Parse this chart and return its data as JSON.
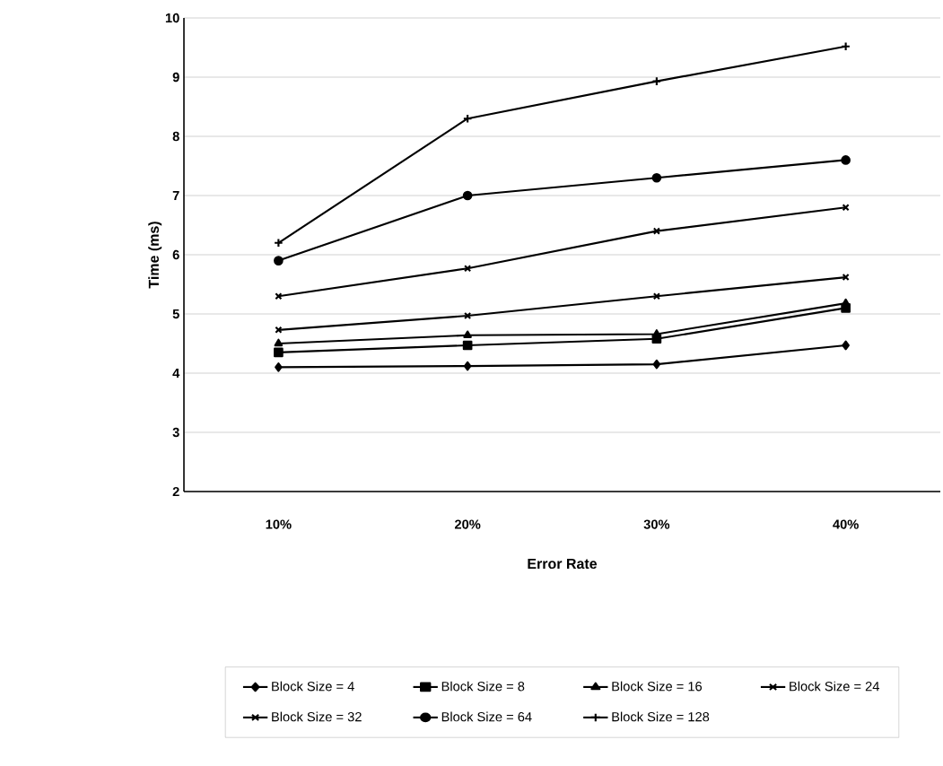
{
  "chart_data": {
    "type": "line",
    "xlabel": "Error Rate",
    "ylabel": "Time (ms)",
    "categories": [
      "10%",
      "20%",
      "30%",
      "40%"
    ],
    "series": [
      {
        "name": "Block Size = 4",
        "color": "#000000",
        "marker": "diamond",
        "values": [
          4.1,
          4.12,
          4.15,
          4.47
        ]
      },
      {
        "name": "Block Size = 8",
        "color": "#000000",
        "marker": "square",
        "values": [
          4.35,
          4.47,
          4.58,
          5.1
        ]
      },
      {
        "name": "Block Size = 16",
        "color": "#000000",
        "marker": "triangle",
        "values": [
          4.5,
          4.64,
          4.66,
          5.18
        ]
      },
      {
        "name": "Block Size = 24",
        "color": "#000000",
        "marker": "cross",
        "values": [
          4.73,
          4.97,
          5.3,
          5.62
        ]
      },
      {
        "name": "Block Size = 32",
        "color": "#000000",
        "marker": "cross",
        "values": [
          5.3,
          5.77,
          6.4,
          6.8
        ]
      },
      {
        "name": "Block Size = 64",
        "color": "#000000",
        "marker": "circle",
        "values": [
          5.9,
          7.0,
          7.3,
          7.6
        ]
      },
      {
        "name": "Block Size = 128",
        "color": "#000000",
        "marker": "plus",
        "values": [
          6.2,
          8.3,
          8.93,
          9.52
        ]
      }
    ],
    "ylim": [
      2,
      10
    ],
    "yticks": [
      2,
      3,
      4,
      5,
      6,
      7,
      8,
      9,
      10
    ],
    "grid": "y",
    "legend": "bottom",
    "line_style": "solid"
  }
}
